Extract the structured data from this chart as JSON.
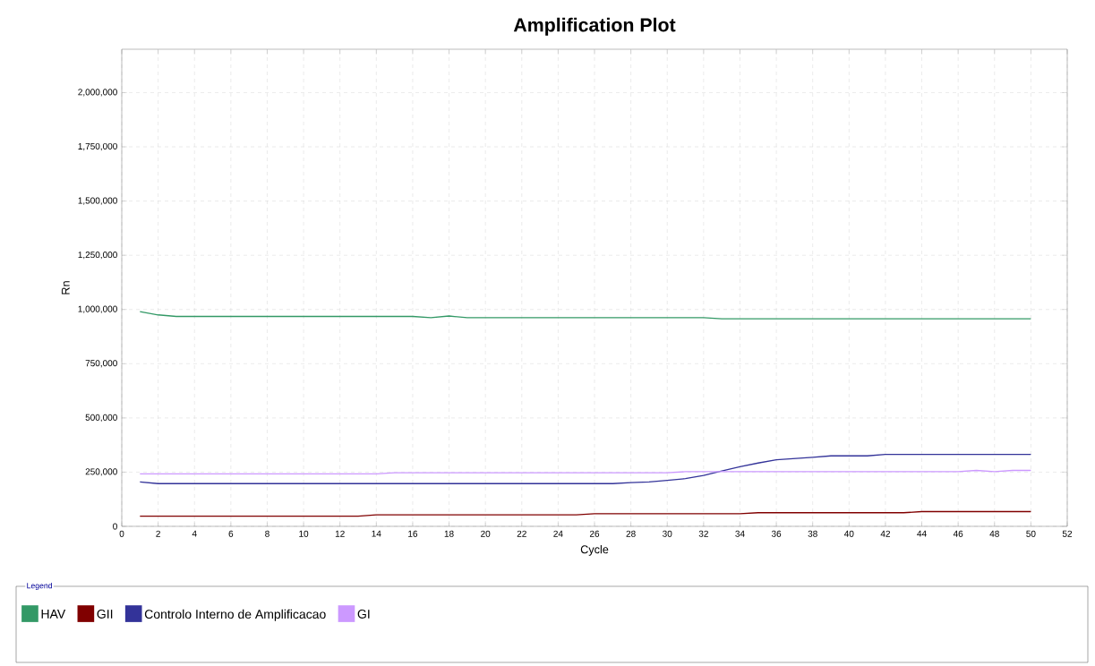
{
  "chart_data": {
    "type": "line",
    "title": "Amplification Plot",
    "xlabel": "Cycle",
    "ylabel": "Rn",
    "legend_title": "Legend",
    "legend": "bottom",
    "grid": true,
    "marker": "none",
    "line_style": "solid",
    "xlim": [
      0,
      52
    ],
    "ylim": [
      0,
      2200000
    ],
    "xticks": [
      0,
      2,
      4,
      6,
      8,
      10,
      12,
      14,
      16,
      18,
      20,
      22,
      24,
      26,
      28,
      30,
      32,
      34,
      36,
      38,
      40,
      42,
      44,
      46,
      48,
      50,
      52
    ],
    "yticks": [
      {
        "value": 0,
        "label": "0"
      },
      {
        "value": 250000,
        "label": "250,000"
      },
      {
        "value": 500000,
        "label": "500,000"
      },
      {
        "value": 750000,
        "label": "750,000"
      },
      {
        "value": 1000000,
        "label": "1,000,000"
      },
      {
        "value": 1250000,
        "label": "1,250,000"
      },
      {
        "value": 1500000,
        "label": "1,500,000"
      },
      {
        "value": 1750000,
        "label": "1,750,000"
      },
      {
        "value": 2000000,
        "label": "2,000,000"
      }
    ],
    "series": [
      {
        "name": "HAV",
        "color": "#339966",
        "x": [
          1,
          2,
          3,
          16,
          17,
          18,
          19,
          32,
          33,
          50
        ],
        "values": [
          990000,
          975000,
          968000,
          968000,
          962000,
          970000,
          962000,
          962000,
          957000,
          957000
        ]
      },
      {
        "name": "GII",
        "color": "#800000",
        "x": [
          1,
          13,
          14,
          25,
          26,
          34,
          35,
          43,
          44,
          50
        ],
        "values": [
          47000,
          47000,
          53000,
          53000,
          58000,
          58000,
          63000,
          63000,
          68000,
          68000
        ]
      },
      {
        "name": "Controlo Interno de Amplificacao",
        "color": "#333399",
        "x": [
          1,
          2,
          27,
          28,
          29,
          30,
          31,
          32,
          33,
          34,
          35,
          36,
          38,
          39,
          41,
          42,
          50
        ],
        "values": [
          205000,
          197000,
          197000,
          202000,
          205000,
          212000,
          220000,
          235000,
          255000,
          275000,
          292000,
          307000,
          318000,
          325000,
          325000,
          332000,
          332000
        ]
      },
      {
        "name": "GI",
        "color": "#cc99ff",
        "x": [
          1,
          14,
          15,
          30,
          31,
          46,
          47,
          48,
          49,
          50
        ],
        "values": [
          242000,
          242000,
          247000,
          247000,
          252000,
          252000,
          258000,
          252000,
          258000,
          258000
        ]
      }
    ]
  }
}
